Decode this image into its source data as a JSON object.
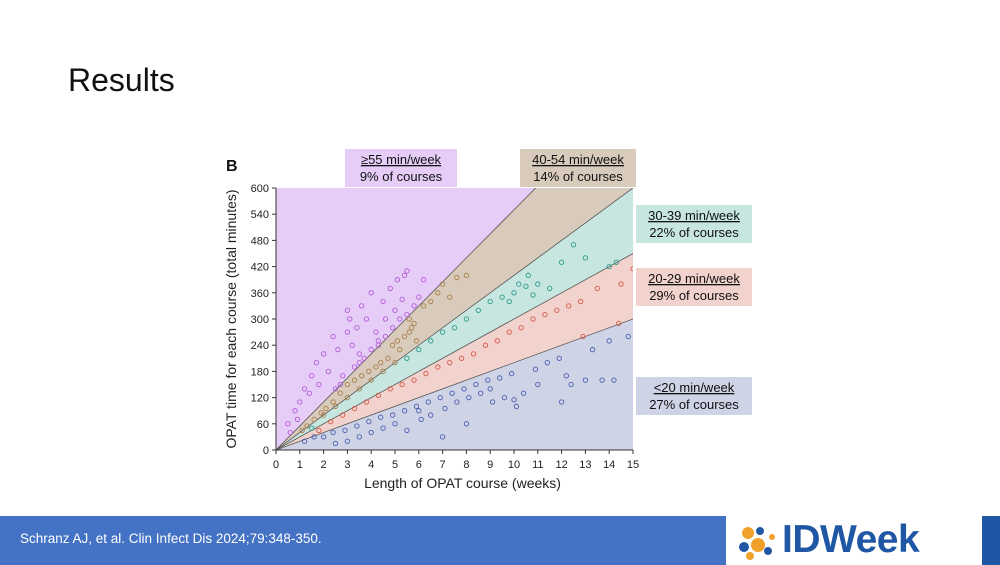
{
  "slide": {
    "title": "Results"
  },
  "footer": {
    "citation": "Schranz AJ, et al. Clin Infect Dis 2024;79:348-350.",
    "logo_text": "IDWeek"
  },
  "colors": {
    "ge55": "#e6cdf7",
    "r40_54": "#d9cbbb",
    "r30_39": "#c8e6e0",
    "r20_29": "#f2d2cc",
    "lt20": "#cfd3e6",
    "dot_purple": "#b45ad8",
    "dot_brown": "#a8804a",
    "dot_teal": "#2b9b8c",
    "dot_red": "#d9594a",
    "dot_blue": "#4a5fb0",
    "footer_blue": "#4472c4",
    "logo_blue": "#1f57a5"
  },
  "chart_data": {
    "type": "scatter",
    "panel_label": "B",
    "xlabel": "Length of OPAT course (weeks)",
    "ylabel": "OPAT time for each course (total minutes)",
    "xlim": [
      0,
      15
    ],
    "ylim": [
      0,
      600
    ],
    "xticks": [
      0,
      1,
      2,
      3,
      4,
      5,
      6,
      7,
      8,
      9,
      10,
      11,
      12,
      13,
      14,
      15
    ],
    "yticks": [
      0,
      60,
      120,
      180,
      240,
      300,
      360,
      420,
      480,
      540,
      600
    ],
    "boundary_slopes_min_per_week": [
      20,
      30,
      40,
      55
    ],
    "bands": [
      {
        "key": "ge55",
        "label": "≥55 min/week",
        "share": "9% of courses",
        "color_key": "ge55",
        "dot_key": "dot_purple"
      },
      {
        "key": "r40_54",
        "label": "40-54 min/week",
        "share": "14% of courses",
        "color_key": "r40_54",
        "dot_key": "dot_brown"
      },
      {
        "key": "r30_39",
        "label": "30-39 min/week",
        "share": "22% of courses",
        "color_key": "r30_39",
        "dot_key": "dot_teal"
      },
      {
        "key": "r20_29",
        "label": "20-29 min/week",
        "share": "29% of courses",
        "color_key": "r20_29",
        "dot_key": "dot_red"
      },
      {
        "key": "lt20",
        "label": "<20 min/week",
        "share": "27% of courses",
        "color_key": "lt20",
        "dot_key": "dot_blue"
      }
    ],
    "points": [
      [
        0.5,
        60
      ],
      [
        0.8,
        90
      ],
      [
        0.6,
        40
      ],
      [
        1.0,
        110
      ],
      [
        1.2,
        140
      ],
      [
        0.9,
        70
      ],
      [
        1.5,
        170
      ],
      [
        1.4,
        130
      ],
      [
        1.7,
        200
      ],
      [
        1.8,
        150
      ],
      [
        2.0,
        220
      ],
      [
        2.2,
        180
      ],
      [
        2.4,
        260
      ],
      [
        2.6,
        230
      ],
      [
        2.8,
        170
      ],
      [
        3.0,
        320
      ],
      [
        3.0,
        270
      ],
      [
        3.2,
        240
      ],
      [
        3.1,
        300
      ],
      [
        3.4,
        280
      ],
      [
        3.6,
        330
      ],
      [
        3.5,
        220
      ],
      [
        3.8,
        300
      ],
      [
        4.0,
        360
      ],
      [
        4.2,
        270
      ],
      [
        4.3,
        250
      ],
      [
        4.5,
        340
      ],
      [
        4.6,
        300
      ],
      [
        4.8,
        370
      ],
      [
        5.0,
        320
      ],
      [
        5.1,
        390
      ],
      [
        5.3,
        345
      ],
      [
        5.5,
        410
      ],
      [
        5.4,
        400
      ],
      [
        5.6,
        300
      ],
      [
        5.8,
        330
      ],
      [
        6.0,
        350
      ],
      [
        5.7,
        280
      ],
      [
        6.2,
        390
      ],
      [
        2.5,
        140
      ],
      [
        2.7,
        150
      ],
      [
        3.3,
        190
      ],
      [
        3.5,
        200
      ],
      [
        3.7,
        210
      ],
      [
        4.0,
        230
      ],
      [
        4.3,
        240
      ],
      [
        4.6,
        260
      ],
      [
        4.9,
        280
      ],
      [
        5.2,
        300
      ],
      [
        5.5,
        310
      ],
      [
        5.8,
        290
      ],
      [
        6.2,
        330
      ],
      [
        6.5,
        340
      ],
      [
        6.8,
        360
      ],
      [
        7.0,
        380
      ],
      [
        7.3,
        350
      ],
      [
        7.6,
        395
      ],
      [
        8.0,
        400
      ],
      [
        1.5,
        50
      ],
      [
        2.0,
        80
      ],
      [
        2.5,
        100
      ],
      [
        3.0,
        120
      ],
      [
        3.5,
        140
      ],
      [
        4.0,
        160
      ],
      [
        4.5,
        180
      ],
      [
        5.0,
        200
      ],
      [
        5.5,
        210
      ],
      [
        6.0,
        230
      ],
      [
        6.5,
        250
      ],
      [
        7.0,
        270
      ],
      [
        7.5,
        280
      ],
      [
        8.0,
        300
      ],
      [
        8.5,
        320
      ],
      [
        9.0,
        340
      ],
      [
        9.5,
        350
      ],
      [
        10.0,
        360
      ],
      [
        10.5,
        375
      ],
      [
        11.0,
        380
      ],
      [
        11.5,
        370
      ],
      [
        12.0,
        430
      ],
      [
        12.5,
        470
      ],
      [
        13.0,
        440
      ],
      [
        14.0,
        420
      ],
      [
        14.3,
        430
      ],
      [
        10.6,
        400
      ],
      [
        9.8,
        340
      ],
      [
        10.2,
        380
      ],
      [
        10.8,
        355
      ],
      [
        1.8,
        45
      ],
      [
        2.3,
        65
      ],
      [
        2.8,
        80
      ],
      [
        3.3,
        95
      ],
      [
        3.8,
        110
      ],
      [
        4.3,
        125
      ],
      [
        4.8,
        140
      ],
      [
        5.3,
        150
      ],
      [
        5.8,
        160
      ],
      [
        6.3,
        175
      ],
      [
        6.8,
        190
      ],
      [
        7.3,
        200
      ],
      [
        7.8,
        210
      ],
      [
        8.3,
        220
      ],
      [
        8.8,
        240
      ],
      [
        9.3,
        250
      ],
      [
        9.8,
        270
      ],
      [
        10.3,
        280
      ],
      [
        10.8,
        300
      ],
      [
        11.3,
        310
      ],
      [
        11.8,
        320
      ],
      [
        12.3,
        330
      ],
      [
        12.8,
        340
      ],
      [
        13.5,
        370
      ],
      [
        14.5,
        380
      ],
      [
        15.0,
        415
      ],
      [
        1.2,
        20
      ],
      [
        1.6,
        30
      ],
      [
        2.0,
        30
      ],
      [
        2.4,
        40
      ],
      [
        2.9,
        45
      ],
      [
        3.4,
        55
      ],
      [
        3.9,
        65
      ],
      [
        4.4,
        75
      ],
      [
        4.9,
        80
      ],
      [
        5.4,
        90
      ],
      [
        5.9,
        100
      ],
      [
        6.4,
        110
      ],
      [
        6.9,
        120
      ],
      [
        7.4,
        130
      ],
      [
        7.9,
        140
      ],
      [
        8.4,
        150
      ],
      [
        8.9,
        160
      ],
      [
        9.4,
        165
      ],
      [
        9.9,
        175
      ],
      [
        10.4,
        130
      ],
      [
        10.9,
        185
      ],
      [
        11.4,
        200
      ],
      [
        11.9,
        210
      ],
      [
        12.4,
        150
      ],
      [
        12.9,
        260
      ],
      [
        13.3,
        230
      ],
      [
        13.7,
        160
      ],
      [
        14.0,
        250
      ],
      [
        14.4,
        290
      ],
      [
        14.8,
        260
      ],
      [
        14.2,
        160
      ],
      [
        12.0,
        110
      ],
      [
        12.2,
        170
      ],
      [
        10.0,
        115
      ],
      [
        10.1,
        100
      ],
      [
        7.0,
        30
      ],
      [
        8.0,
        60
      ],
      [
        9.0,
        140
      ],
      [
        11.0,
        150
      ],
      [
        13.0,
        160
      ],
      [
        6.0,
        90
      ],
      [
        6.5,
        80
      ],
      [
        5.0,
        60
      ],
      [
        4.5,
        50
      ],
      [
        4.0,
        40
      ],
      [
        3.5,
        30
      ],
      [
        3.0,
        20
      ],
      [
        2.5,
        15
      ],
      [
        5.5,
        45
      ],
      [
        6.1,
        70
      ],
      [
        7.1,
        95
      ],
      [
        7.6,
        110
      ],
      [
        8.1,
        120
      ],
      [
        8.6,
        130
      ],
      [
        9.1,
        110
      ],
      [
        9.6,
        120
      ],
      [
        4.9,
        240
      ],
      [
        5.1,
        250
      ],
      [
        5.2,
        230
      ],
      [
        5.4,
        260
      ],
      [
        5.6,
        270
      ],
      [
        5.9,
        250
      ],
      [
        4.7,
        210
      ],
      [
        4.4,
        200
      ],
      [
        4.2,
        190
      ],
      [
        3.9,
        180
      ],
      [
        3.6,
        170
      ],
      [
        3.3,
        160
      ],
      [
        3.0,
        150
      ],
      [
        2.7,
        130
      ],
      [
        2.4,
        110
      ],
      [
        2.1,
        95
      ],
      [
        1.9,
        85
      ],
      [
        1.6,
        70
      ],
      [
        1.3,
        55
      ],
      [
        1.1,
        45
      ]
    ]
  }
}
